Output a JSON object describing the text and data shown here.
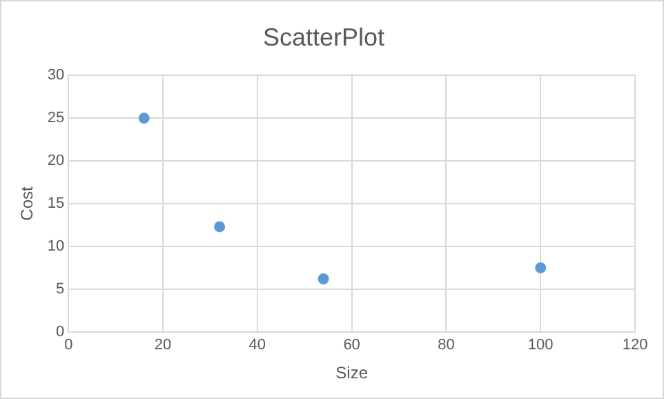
{
  "chart_data": {
    "type": "scatter",
    "title": "ScatterPlot",
    "xlabel": "Size",
    "ylabel": "Cost",
    "x": [
      16,
      32,
      54,
      100
    ],
    "series": [
      {
        "color": "#5b9bd5",
        "values": [
          25,
          12.3,
          6.2,
          7.5
        ]
      }
    ],
    "xlim": [
      0,
      120
    ],
    "xticks": [
      0,
      20,
      40,
      60,
      80,
      100,
      120
    ],
    "ylim": [
      0,
      30
    ],
    "yticks": [
      0,
      5,
      10,
      15,
      20,
      25,
      30
    ],
    "grid": true,
    "legend": false,
    "marker": "circle"
  }
}
